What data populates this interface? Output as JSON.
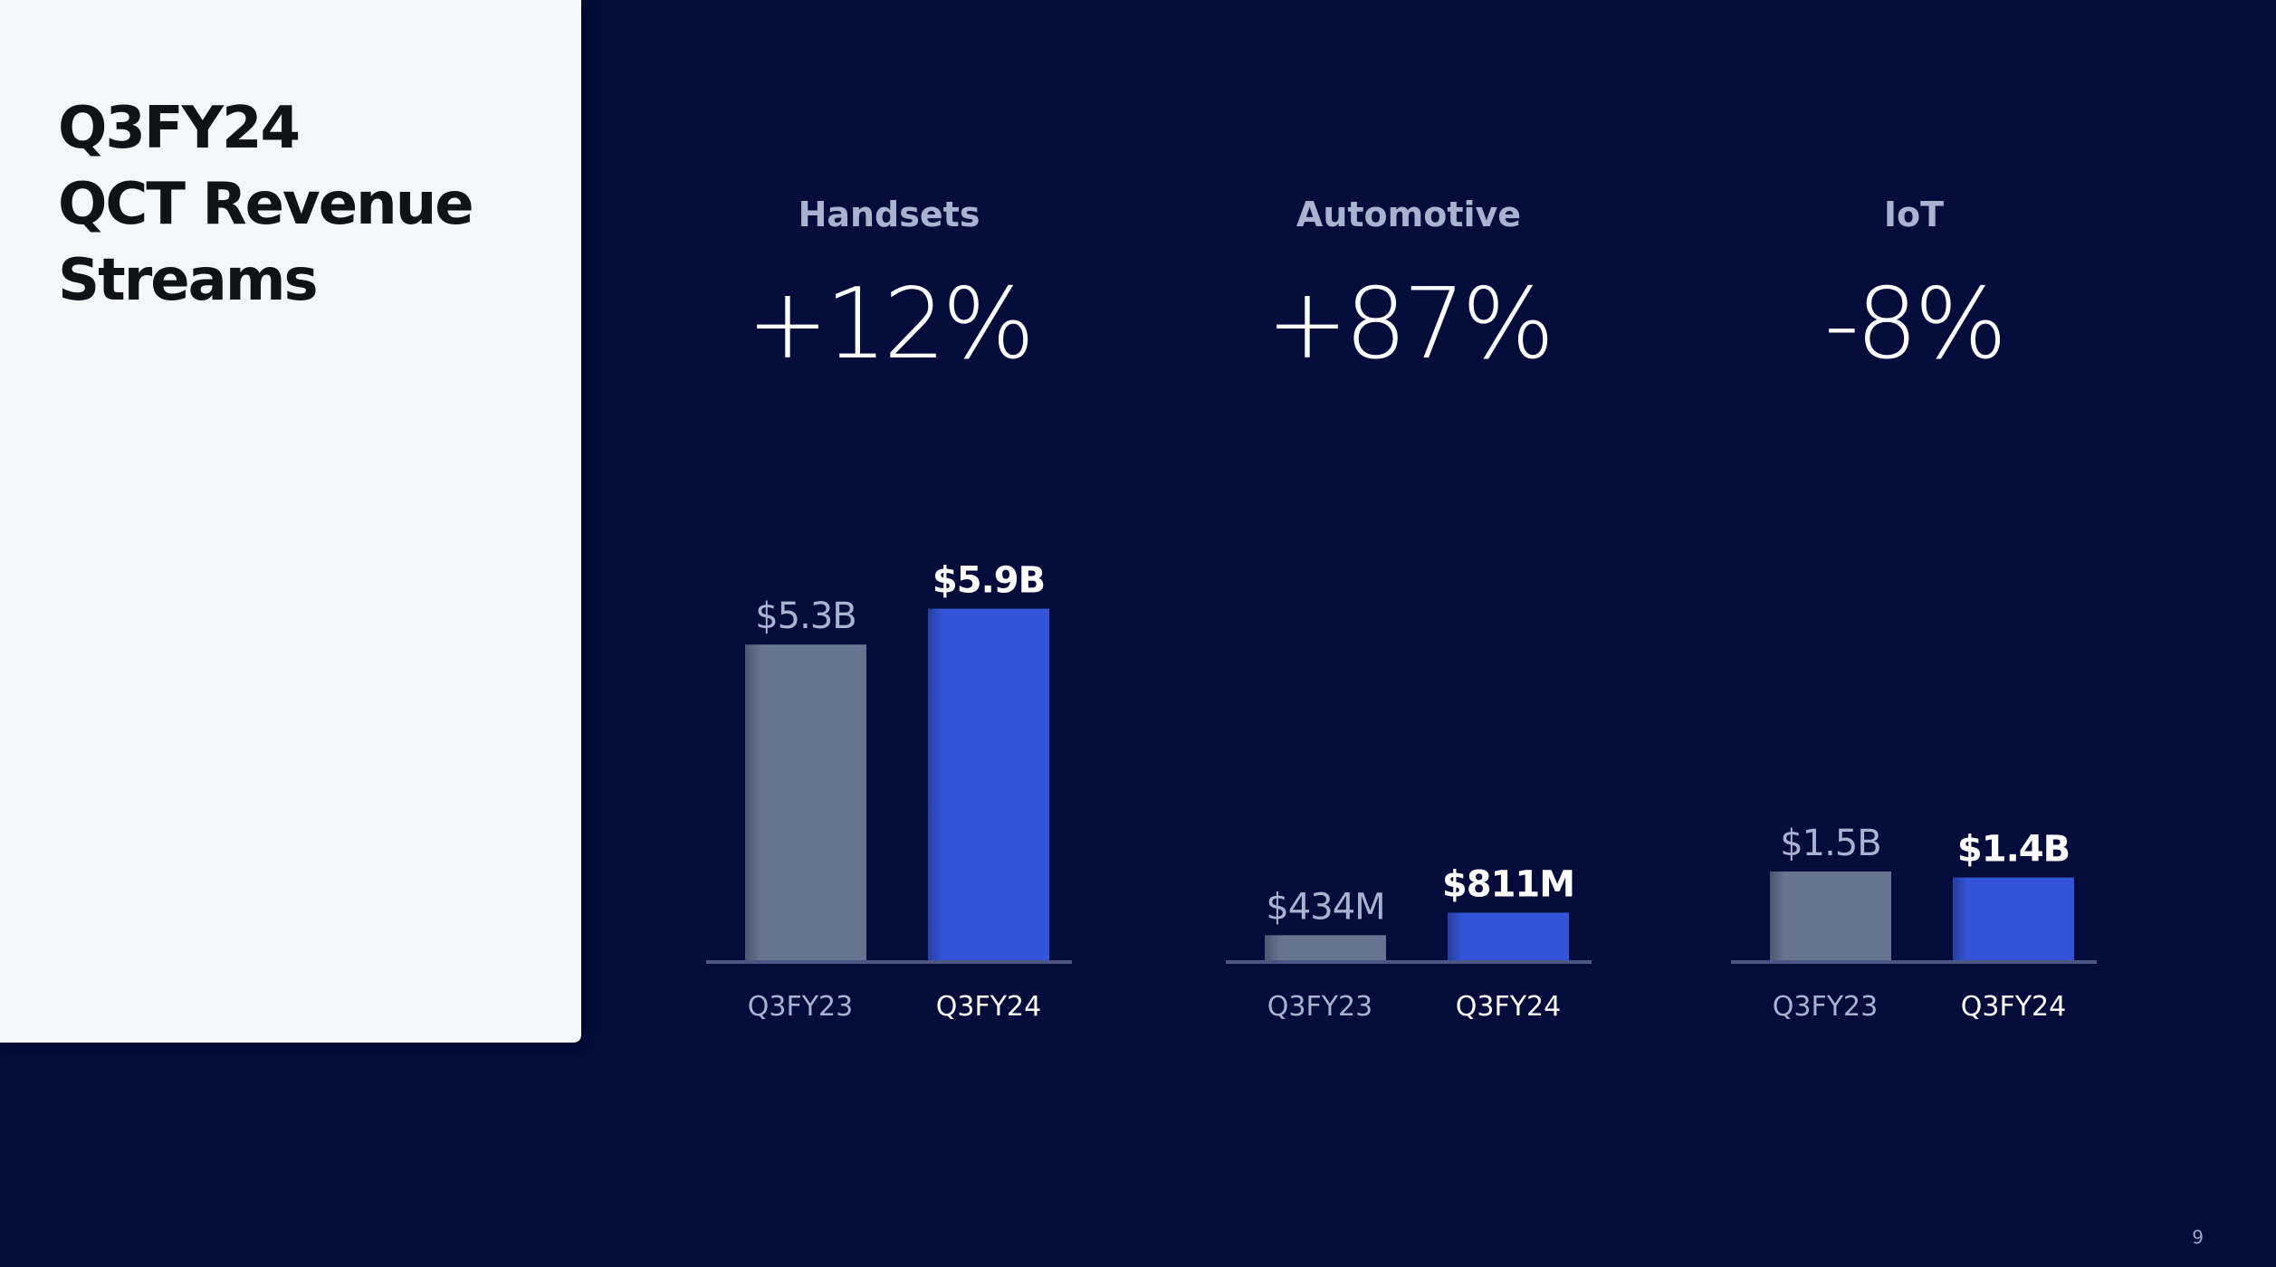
{
  "slide": {
    "title_lines": [
      "Q3FY24",
      "QCT Revenue",
      "Streams"
    ],
    "page_number": "9"
  },
  "colors": {
    "background": "#030c3a",
    "panel": "#f5f6f8",
    "bar_prior": "#667391",
    "bar_current": "#3354d6",
    "segment_label": "#a9b2cf",
    "prior_label": "#a9b2cf",
    "current_label": "#ffffff"
  },
  "chart_data": [
    {
      "type": "bar",
      "title": "Handsets",
      "change": "+12%",
      "categories": [
        "Q3FY23",
        "Q3FY24"
      ],
      "values": [
        5.3,
        5.9
      ],
      "value_labels": [
        "$5.3B",
        "$5.9B"
      ],
      "unit": "$B",
      "ylim": [
        0,
        6.0
      ],
      "grid": false
    },
    {
      "type": "bar",
      "title": "Automotive",
      "change": "+87%",
      "categories": [
        "Q3FY23",
        "Q3FY24"
      ],
      "values": [
        0.434,
        0.811
      ],
      "value_labels": [
        "$434M",
        "$811M"
      ],
      "unit": "$B",
      "ylim": [
        0,
        6.0
      ],
      "grid": false
    },
    {
      "type": "bar",
      "title": "IoT",
      "change": "-8%",
      "categories": [
        "Q3FY23",
        "Q3FY24"
      ],
      "values": [
        1.5,
        1.4
      ],
      "value_labels": [
        "$1.5B",
        "$1.4B"
      ],
      "unit": "$B",
      "ylim": [
        0,
        6.0
      ],
      "grid": false
    }
  ]
}
